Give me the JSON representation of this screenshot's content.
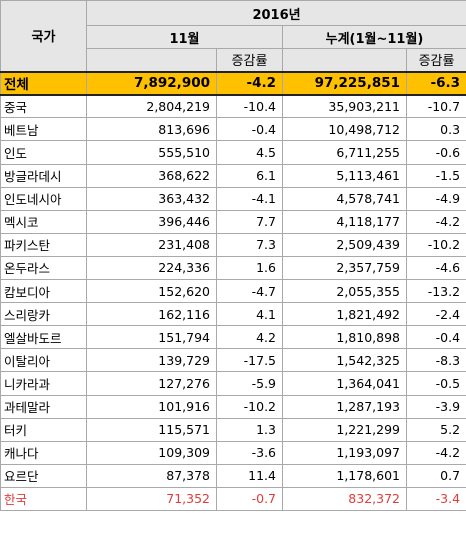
{
  "header": {
    "country": "국가",
    "year": "2016년",
    "month_period": "11월",
    "cumulative_period": "누계(1월~11월)",
    "change_label": "증감률"
  },
  "total": {
    "country": "전체",
    "nov": "7,892,900",
    "nov_change": "-4.2",
    "cum": "97,225,851",
    "cum_change": "-6.3"
  },
  "rows": [
    {
      "country": "중국",
      "nov": "2,804,219",
      "nov_change": "-10.4",
      "cum": "35,903,211",
      "cum_change": "-10.7"
    },
    {
      "country": "베트남",
      "nov": "813,696",
      "nov_change": "-0.4",
      "cum": "10,498,712",
      "cum_change": "0.3"
    },
    {
      "country": "인도",
      "nov": "555,510",
      "nov_change": "4.5",
      "cum": "6,711,255",
      "cum_change": "-0.6"
    },
    {
      "country": "방글라데시",
      "nov": "368,622",
      "nov_change": "6.1",
      "cum": "5,113,461",
      "cum_change": "-1.5"
    },
    {
      "country": "인도네시아",
      "nov": "363,432",
      "nov_change": "-4.1",
      "cum": "4,578,741",
      "cum_change": "-4.9"
    },
    {
      "country": "멕시코",
      "nov": "396,446",
      "nov_change": "7.7",
      "cum": "4,118,177",
      "cum_change": "-4.2"
    },
    {
      "country": "파키스탄",
      "nov": "231,408",
      "nov_change": "7.3",
      "cum": "2,509,439",
      "cum_change": "-10.2"
    },
    {
      "country": "온두라스",
      "nov": "224,336",
      "nov_change": "1.6",
      "cum": "2,357,759",
      "cum_change": "-4.6"
    },
    {
      "country": "캄보디아",
      "nov": "152,620",
      "nov_change": "-4.7",
      "cum": "2,055,355",
      "cum_change": "-13.2"
    },
    {
      "country": "스리랑카",
      "nov": "162,116",
      "nov_change": "4.1",
      "cum": "1,821,492",
      "cum_change": "-2.4"
    },
    {
      "country": "엘살바도르",
      "nov": "151,794",
      "nov_change": "4.2",
      "cum": "1,810,898",
      "cum_change": "-0.4"
    },
    {
      "country": "이탈리아",
      "nov": "139,729",
      "nov_change": "-17.5",
      "cum": "1,542,325",
      "cum_change": "-8.3"
    },
    {
      "country": "니카라과",
      "nov": "127,276",
      "nov_change": "-5.9",
      "cum": "1,364,041",
      "cum_change": "-0.5"
    },
    {
      "country": "과테말라",
      "nov": "101,916",
      "nov_change": "-10.2",
      "cum": "1,287,193",
      "cum_change": "-3.9"
    },
    {
      "country": "터키",
      "nov": "115,571",
      "nov_change": "1.3",
      "cum": "1,221,299",
      "cum_change": "5.2"
    },
    {
      "country": "캐나다",
      "nov": "109,309",
      "nov_change": "-3.6",
      "cum": "1,193,097",
      "cum_change": "-4.2"
    },
    {
      "country": "요르단",
      "nov": "87,378",
      "nov_change": "11.4",
      "cum": "1,178,601",
      "cum_change": "0.7"
    },
    {
      "country": "한국",
      "nov": "71,352",
      "nov_change": "-0.7",
      "cum": "832,372",
      "cum_change": "-3.4",
      "highlight": true
    }
  ],
  "colors": {
    "header_bg": "#e7e6e6",
    "total_bg": "#ffc000",
    "highlight_text": "#e03c3c",
    "grid": "#a9a9a9"
  }
}
